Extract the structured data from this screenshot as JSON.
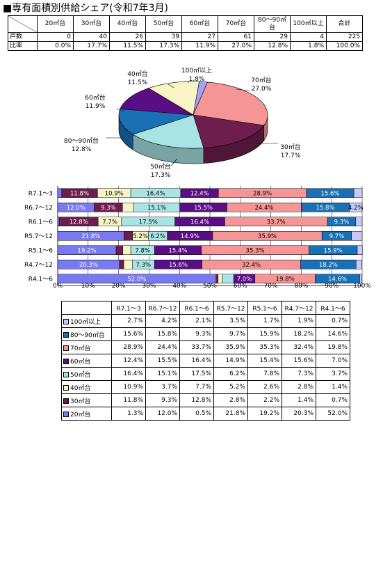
{
  "title": "■専有面積別供給シェア(令和7年3月)",
  "summary": {
    "headers": [
      "20㎡台",
      "30㎡台",
      "40㎡台",
      "50㎡台",
      "60㎡台",
      "70㎡台",
      "80～90㎡台",
      "100㎡以上",
      "合計"
    ],
    "rows": [
      {
        "label": "戸数",
        "values": [
          "0",
          "40",
          "26",
          "39",
          "27",
          "61",
          "29",
          "4",
          "225"
        ]
      },
      {
        "label": "比率",
        "values": [
          "0.0%",
          "17.7%",
          "11.5%",
          "17.3%",
          "11.9%",
          "27.0%",
          "12.8%",
          "1.8%",
          "100.0%"
        ]
      }
    ]
  },
  "chart_data": [
    {
      "type": "pie",
      "title": "",
      "slices": [
        {
          "label": "100㎡以上",
          "value": 1.8,
          "text": "1.8%",
          "color": "#A3A3FF"
        },
        {
          "label": "70㎡台",
          "value": 27.0,
          "text": "27.0%",
          "color": "#F59595"
        },
        {
          "label": "30㎡台",
          "value": 17.7,
          "text": "17.7%",
          "color": "#6E1E4C"
        },
        {
          "label": "50㎡台",
          "value": 17.3,
          "text": "17.3%",
          "color": "#A8E4E4"
        },
        {
          "label": "80～90㎡台",
          "value": 12.8,
          "text": "12.8%",
          "color": "#1A70B4"
        },
        {
          "label": "60㎡台",
          "value": 11.9,
          "text": "11.9%",
          "color": "#5A0E84"
        },
        {
          "label": "40㎡台",
          "value": 11.5,
          "text": "11.5%",
          "color": "#F8F4C4"
        }
      ]
    },
    {
      "type": "bar",
      "stacked": true,
      "orientation": "horizontal",
      "categories": [
        "R7.1～3",
        "R6.7～12",
        "R6.1～6",
        "R5.7～12",
        "R5.1～6",
        "R4.7～12",
        "R4.1～6"
      ],
      "xlim": [
        0,
        100
      ],
      "xticks": [
        "0%",
        "10%",
        "20%",
        "30%",
        "40%",
        "50%",
        "60%",
        "70%",
        "80%",
        "90%",
        "100%"
      ],
      "series": [
        {
          "name": "20㎡台",
          "color": "#7A7AF0",
          "values": [
            1.3,
            12.0,
            0.5,
            21.8,
            19.2,
            20.3,
            52.0
          ]
        },
        {
          "name": "30㎡台",
          "color": "#6E1E4C",
          "values": [
            11.8,
            9.3,
            12.8,
            2.8,
            2.2,
            1.4,
            0.7
          ]
        },
        {
          "name": "40㎡台",
          "color": "#F8F4C4",
          "values": [
            10.9,
            3.7,
            7.7,
            5.2,
            2.6,
            2.8,
            1.4
          ]
        },
        {
          "name": "50㎡台",
          "color": "#A8E4E4",
          "values": [
            16.4,
            15.1,
            17.5,
            6.2,
            7.8,
            7.3,
            3.7
          ]
        },
        {
          "name": "60㎡台",
          "color": "#5A0E84",
          "values": [
            12.4,
            15.5,
            16.4,
            14.9,
            15.4,
            15.6,
            7.0
          ]
        },
        {
          "name": "70㎡台",
          "color": "#F59595",
          "values": [
            28.9,
            24.4,
            33.7,
            35.9,
            35.3,
            32.4,
            19.8
          ]
        },
        {
          "name": "80～90㎡台",
          "color": "#1A70B4",
          "values": [
            15.6,
            15.8,
            9.3,
            9.7,
            15.9,
            18.2,
            14.6
          ]
        },
        {
          "name": "100㎡以上",
          "color": "#C8C8FC",
          "values": [
            2.7,
            4.2,
            2.1,
            3.5,
            1.7,
            1.9,
            0.7
          ]
        }
      ],
      "labels": [
        [
          null,
          "11.8%",
          "10.9%",
          "16.4%",
          "12.4%",
          "28.9%",
          "15.6%",
          null
        ],
        [
          "12.0%",
          "9.3%",
          null,
          "15.1%",
          "15.5%",
          "24.4%",
          "15.8%",
          "4.2%"
        ],
        [
          null,
          "12.8%",
          "7.7%",
          "17.5%",
          "16.4%",
          "33.7%",
          "9.3%",
          null
        ],
        [
          "21.8%",
          null,
          "5.2%",
          "6.2%",
          "14.9%",
          "35.9%",
          "9.7%",
          null
        ],
        [
          "19.2%",
          null,
          null,
          "7.8%",
          "15.4%",
          "35.3%",
          "15.9%",
          null
        ],
        [
          "20.3%",
          null,
          null,
          "7.3%",
          "15.6%",
          "32.4%",
          "18.2%",
          null
        ],
        [
          "52.0%",
          null,
          null,
          null,
          "7.0%",
          "19.8%",
          "14.6%",
          null
        ]
      ]
    }
  ],
  "data_table": {
    "headers": [
      "R7.1～3",
      "R6.7～12",
      "R6.1～6",
      "R5.7～12",
      "R5.1～6",
      "R4.7～12",
      "R4.1～6"
    ],
    "rows": [
      {
        "label": "100㎡以上",
        "color": "#C8C8FC",
        "values": [
          "2.7%",
          "4.2%",
          "2.1%",
          "3.5%",
          "1.7%",
          "1.9%",
          "0.7%"
        ]
      },
      {
        "label": "80～90㎡台",
        "color": "#1A70B4",
        "values": [
          "15.6%",
          "15.8%",
          "9.3%",
          "9.7%",
          "15.9%",
          "18.2%",
          "14.6%"
        ]
      },
      {
        "label": "70㎡台",
        "color": "#F59595",
        "values": [
          "28.9%",
          "24.4%",
          "33.7%",
          "35.9%",
          "35.3%",
          "32.4%",
          "19.8%"
        ]
      },
      {
        "label": "60㎡台",
        "color": "#5A0E84",
        "values": [
          "12.4%",
          "15.5%",
          "16.4%",
          "14.9%",
          "15.4%",
          "15.6%",
          "7.0%"
        ]
      },
      {
        "label": "50㎡台",
        "color": "#A8E4E4",
        "values": [
          "16.4%",
          "15.1%",
          "17.5%",
          "6.2%",
          "7.8%",
          "7.3%",
          "3.7%"
        ]
      },
      {
        "label": "40㎡台",
        "color": "#F8F4C4",
        "values": [
          "10.9%",
          "3.7%",
          "7.7%",
          "5.2%",
          "2.6%",
          "2.8%",
          "1.4%"
        ]
      },
      {
        "label": "30㎡台",
        "color": "#6E1E4C",
        "values": [
          "11.8%",
          "9.3%",
          "12.8%",
          "2.8%",
          "2.2%",
          "1.4%",
          "0.7%"
        ]
      },
      {
        "label": "20㎡台",
        "color": "#7A7AF0",
        "values": [
          "1.3%",
          "12.0%",
          "0.5%",
          "21.8%",
          "19.2%",
          "20.3%",
          "52.0%"
        ]
      }
    ]
  }
}
